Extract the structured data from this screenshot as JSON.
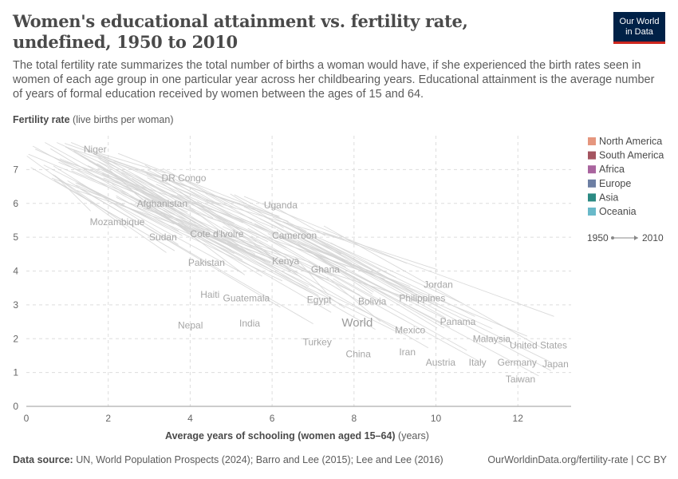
{
  "header": {
    "title": "Women's educational attainment vs. fertility rate, undefined, 1950 to 2010",
    "subtitle": "The total fertility rate summarizes the total number of births a woman would have, if she experienced the birth rates seen in women of each age group in one particular year across her childbearing years. Educational attainment is the average number of years of formal education received by women between the ages of 15 and 64.",
    "logo_line1": "Our World",
    "logo_line2": "in Data"
  },
  "footer": {
    "source_label": "Data source:",
    "source_text": "UN, World Population Prospects (2024); Barro and Lee (2015); Lee and Lee (2016)",
    "credit": "OurWorldinData.org/fertility-rate | CC BY"
  },
  "chart_data": {
    "type": "scatter",
    "title": "Women's educational attainment vs. fertility rate, undefined, 1950 to 2010",
    "ylabel": "Fertility rate",
    "ylabel_unit": "(live births per woman)",
    "xlabel": "Average years of schooling (women aged 15–64)",
    "xlabel_unit": "(years)",
    "xlim": [
      0,
      13.3
    ],
    "ylim": [
      0,
      8
    ],
    "xticks": [
      0,
      2,
      4,
      6,
      8,
      10,
      12
    ],
    "yticks": [
      0,
      1,
      2,
      3,
      4,
      5,
      6,
      7
    ],
    "grid": true,
    "legend_position": "right",
    "legend": [
      {
        "name": "North America",
        "color": "#e5967e"
      },
      {
        "name": "South America",
        "color": "#a45460"
      },
      {
        "name": "Africa",
        "color": "#a9649e"
      },
      {
        "name": "Europe",
        "color": "#6d7fa3"
      },
      {
        "name": "Asia",
        "color": "#2b8a83"
      },
      {
        "name": "Oceania",
        "color": "#69b9c9"
      }
    ],
    "time_range": {
      "start": "1950",
      "end": "2010"
    },
    "labeled_points": [
      {
        "name": "Niger",
        "x": 1.4,
        "y": 7.6
      },
      {
        "name": "DR Congo",
        "x": 3.3,
        "y": 6.75
      },
      {
        "name": "Afghanistan",
        "x": 2.7,
        "y": 6.0
      },
      {
        "name": "Uganda",
        "x": 5.8,
        "y": 5.95
      },
      {
        "name": "Mozambique",
        "x": 1.55,
        "y": 5.45
      },
      {
        "name": "Cote d'Ivoire",
        "x": 4.0,
        "y": 5.1
      },
      {
        "name": "Sudan",
        "x": 3.0,
        "y": 5.0
      },
      {
        "name": "Cameroon",
        "x": 6.0,
        "y": 5.05
      },
      {
        "name": "Kenya",
        "x": 6.0,
        "y": 4.3
      },
      {
        "name": "Pakistan",
        "x": 3.95,
        "y": 4.25
      },
      {
        "name": "Ghana",
        "x": 6.95,
        "y": 4.05
      },
      {
        "name": "Jordan",
        "x": 9.7,
        "y": 3.6
      },
      {
        "name": "Haiti",
        "x": 4.25,
        "y": 3.3
      },
      {
        "name": "Guatemala",
        "x": 4.8,
        "y": 3.2
      },
      {
        "name": "Egypt",
        "x": 6.85,
        "y": 3.15
      },
      {
        "name": "Bolivia",
        "x": 8.1,
        "y": 3.1
      },
      {
        "name": "Philippines",
        "x": 9.1,
        "y": 3.2
      },
      {
        "name": "World",
        "x": 7.7,
        "y": 2.45
      },
      {
        "name": "Nepal",
        "x": 3.7,
        "y": 2.4
      },
      {
        "name": "India",
        "x": 5.2,
        "y": 2.45
      },
      {
        "name": "Panama",
        "x": 10.1,
        "y": 2.5
      },
      {
        "name": "Mexico",
        "x": 9.0,
        "y": 2.25
      },
      {
        "name": "Malaysia",
        "x": 10.9,
        "y": 2.0
      },
      {
        "name": "Turkey",
        "x": 6.75,
        "y": 1.9
      },
      {
        "name": "United States",
        "x": 11.8,
        "y": 1.8
      },
      {
        "name": "Iran",
        "x": 9.1,
        "y": 1.6
      },
      {
        "name": "China",
        "x": 7.8,
        "y": 1.55
      },
      {
        "name": "Austria",
        "x": 9.75,
        "y": 1.3
      },
      {
        "name": "Italy",
        "x": 10.8,
        "y": 1.3
      },
      {
        "name": "Germany",
        "x": 11.5,
        "y": 1.3
      },
      {
        "name": "Japan",
        "x": 12.6,
        "y": 1.25
      },
      {
        "name": "Taiwan",
        "x": 11.7,
        "y": 0.8
      }
    ]
  }
}
